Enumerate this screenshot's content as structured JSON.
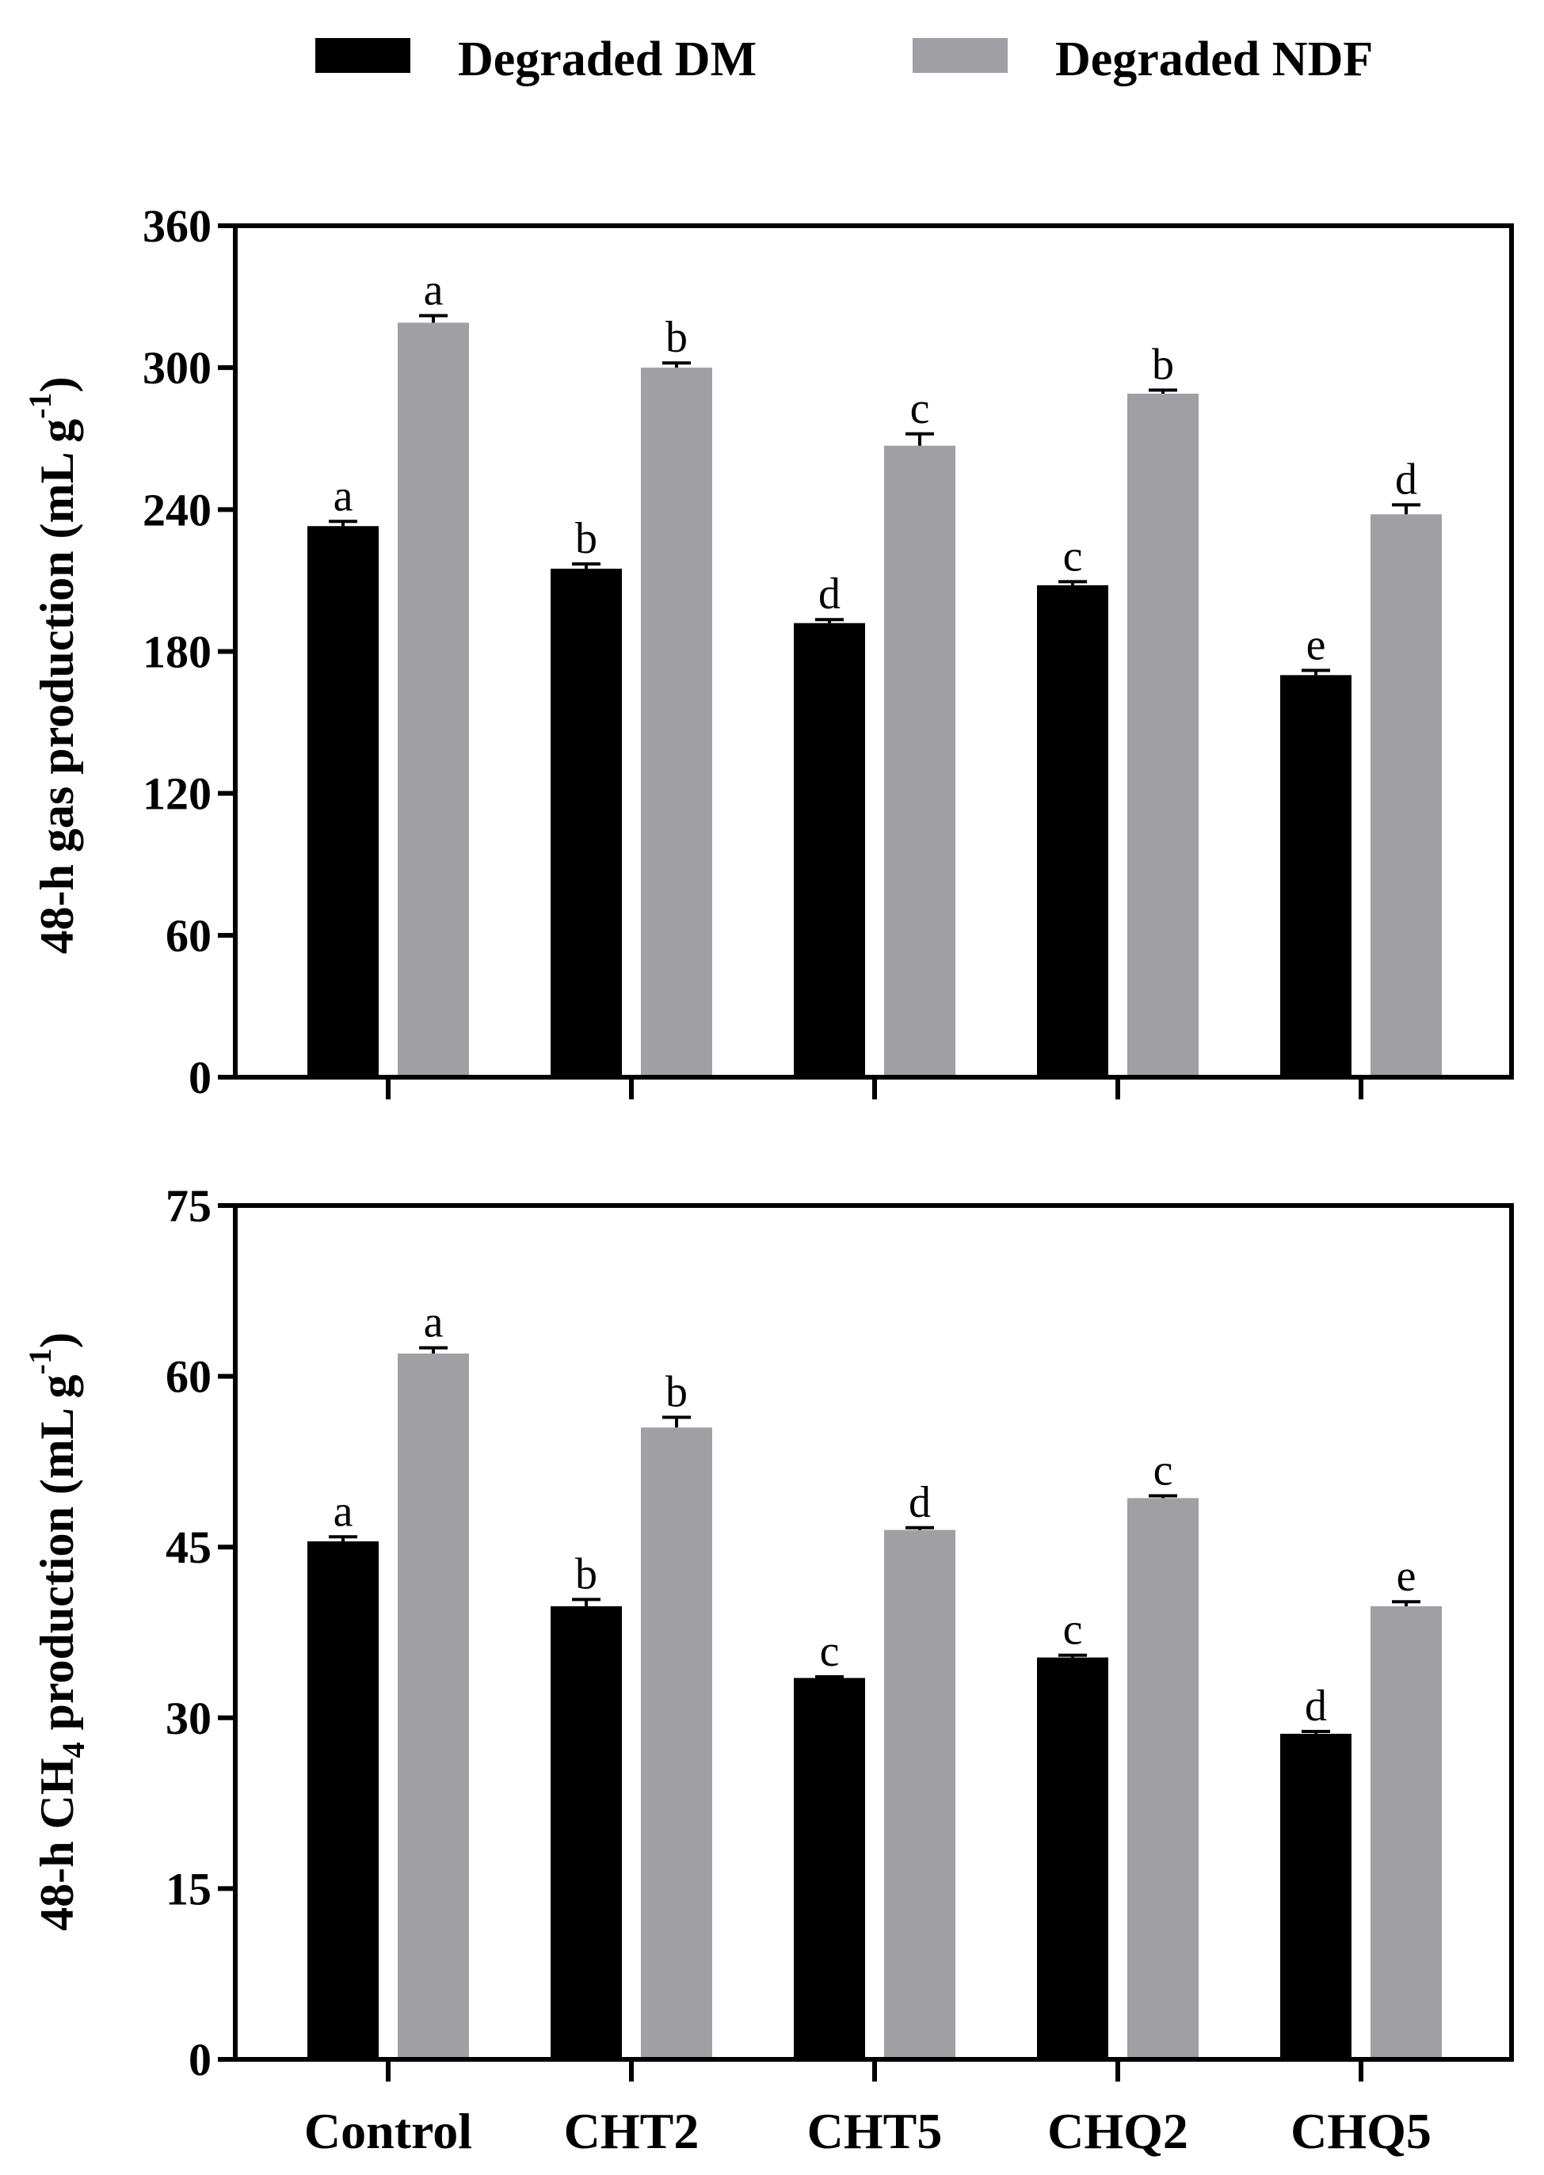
{
  "legend": [
    {
      "label": "Degraded DM",
      "color": "#000000"
    },
    {
      "label": "Degraded NDF",
      "color": "#a0a0a4"
    }
  ],
  "categories": [
    "Control",
    "CHT2",
    "CHT5",
    "CHQ2",
    "CHQ5"
  ],
  "chart_data": [
    {
      "type": "bar",
      "title": "",
      "xlabel": "",
      "ylabel_main": "48-h gas production (mL g",
      "ylabel_sup": "-1",
      "ylabel_close": ")",
      "ylim": [
        0,
        360
      ],
      "yticks": [
        0,
        60,
        120,
        180,
        240,
        300,
        360
      ],
      "categories": [
        "Control",
        "CHT2",
        "CHT5",
        "CHQ2",
        "CHQ5"
      ],
      "show_category_labels": false,
      "series": [
        {
          "name": "Degraded DM",
          "color": "#000000",
          "values": [
            233,
            215,
            192,
            208,
            170
          ],
          "errors": [
            2,
            2,
            1.5,
            1.5,
            2
          ],
          "letters": [
            "a",
            "b",
            "d",
            "c",
            "e"
          ]
        },
        {
          "name": "Degraded NDF",
          "color": "#a0a0a4",
          "values": [
            319,
            300,
            267,
            289,
            238
          ],
          "errors": [
            3,
            2,
            5,
            1.5,
            4
          ],
          "letters": [
            "a",
            "b",
            "c",
            "b",
            "d"
          ]
        }
      ]
    },
    {
      "type": "bar",
      "title": "",
      "xlabel": "",
      "ylabel_main": "48-h CH",
      "ylabel_sub": "4",
      "ylabel_mid": " production (mL g",
      "ylabel_sup": "-1",
      "ylabel_close": ")",
      "ylim": [
        0,
        75
      ],
      "yticks": [
        0,
        15,
        30,
        45,
        60,
        75
      ],
      "categories": [
        "Control",
        "CHT2",
        "CHT5",
        "CHQ2",
        "CHQ5"
      ],
      "show_category_labels": true,
      "series": [
        {
          "name": "Degraded DM",
          "color": "#000000",
          "values": [
            45.5,
            39.8,
            33.5,
            35.3,
            28.6
          ],
          "errors": [
            0.4,
            0.6,
            0.1,
            0.2,
            0.2
          ],
          "letters": [
            "a",
            "b",
            "c",
            "c",
            "d"
          ]
        },
        {
          "name": "Degraded NDF",
          "color": "#a0a0a4",
          "values": [
            62.0,
            55.5,
            46.5,
            49.3,
            39.8
          ],
          "errors": [
            0.5,
            0.9,
            0.2,
            0.2,
            0.4
          ],
          "letters": [
            "a",
            "b",
            "d",
            "c",
            "e"
          ]
        }
      ]
    }
  ]
}
